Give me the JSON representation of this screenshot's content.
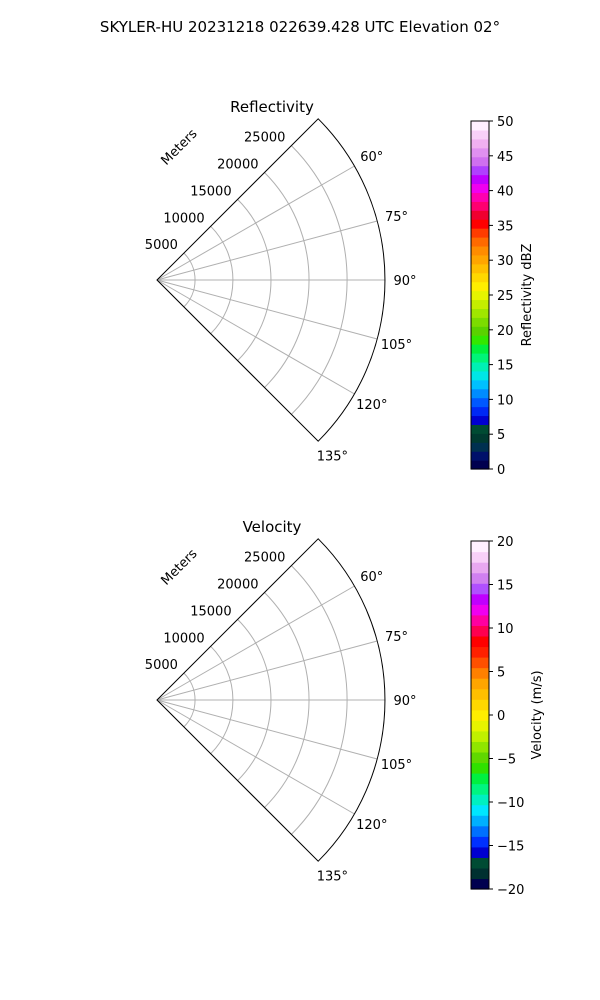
{
  "suptitle": "SKYLER-HU  20231218  022639.428 UTC Elevation 02°",
  "chart_data": [
    {
      "type": "polar-sector",
      "title": "Reflectivity",
      "r_label": "Meters",
      "r_ticks": [
        5000,
        10000,
        15000,
        20000,
        25000
      ],
      "r_lim": [
        0,
        30000
      ],
      "theta_ticks_deg": [
        60,
        75,
        90,
        105,
        120,
        135
      ],
      "theta_lim_deg": [
        45,
        135
      ],
      "theta_zero": "north",
      "theta_direction": "clockwise",
      "grid": true,
      "colorbar": {
        "label": "Reflectivity dBZ",
        "vmin": 0,
        "vmax": 50,
        "ticks": [
          0,
          5,
          10,
          15,
          20,
          25,
          30,
          35,
          40,
          45,
          50
        ],
        "colors": [
          "#00004f",
          "#00106a",
          "#003050",
          "#003a30",
          "#004b33",
          "#0000d0",
          "#0028f5",
          "#0058ff",
          "#008cff",
          "#00c0ff",
          "#00e6e6",
          "#00f0b4",
          "#00f578",
          "#00f03c",
          "#32e800",
          "#5ad200",
          "#7cdc00",
          "#a0e600",
          "#c4ee00",
          "#e6f400",
          "#ffee00",
          "#ffd800",
          "#ffbf00",
          "#ffa500",
          "#ff8c00",
          "#ff6a00",
          "#ff3c00",
          "#ff0000",
          "#f00030",
          "#ff0070",
          "#ff00b0",
          "#f000f0",
          "#c000ff",
          "#b040ff",
          "#d070f0",
          "#e090f0",
          "#f0b0f0",
          "#f8d0f8",
          "#fff0ff"
        ]
      }
    },
    {
      "type": "polar-sector",
      "title": "Velocity",
      "r_label": "Meters",
      "r_ticks": [
        5000,
        10000,
        15000,
        20000,
        25000
      ],
      "r_lim": [
        0,
        30000
      ],
      "theta_ticks_deg": [
        60,
        75,
        90,
        105,
        120,
        135
      ],
      "theta_lim_deg": [
        45,
        135
      ],
      "theta_zero": "north",
      "theta_direction": "clockwise",
      "grid": true,
      "colorbar": {
        "label": "Velocity (m/s)",
        "vmin": -20,
        "vmax": 20,
        "ticks": [
          -20,
          -15,
          -10,
          -5,
          0,
          5,
          10,
          15,
          20
        ],
        "colors": [
          "#00004f",
          "#003030",
          "#004b33",
          "#0000d0",
          "#0030ff",
          "#0070ff",
          "#00b0ff",
          "#00e6ff",
          "#00f0c0",
          "#00f580",
          "#00f040",
          "#30e000",
          "#60d800",
          "#90e600",
          "#c0f000",
          "#e6f400",
          "#ffee00",
          "#ffd800",
          "#ffbf00",
          "#ffa500",
          "#ff8000",
          "#ff5000",
          "#ff2000",
          "#ff0000",
          "#ff0050",
          "#ff00a0",
          "#f000f0",
          "#c000ff",
          "#b050ff",
          "#d080f0",
          "#e8a8f0",
          "#f8d0f8",
          "#fff0ff"
        ]
      }
    }
  ]
}
